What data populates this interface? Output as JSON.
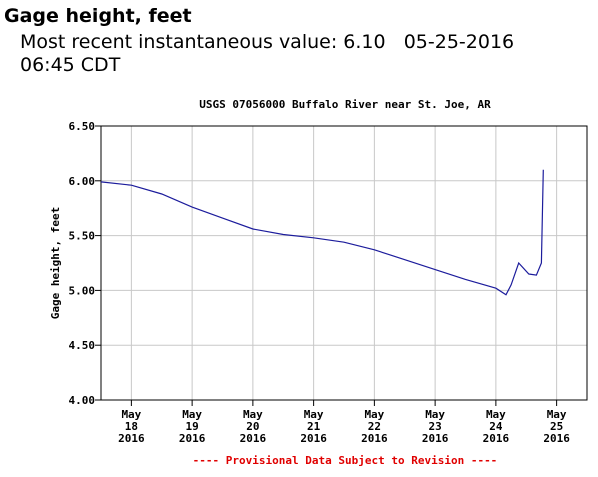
{
  "header": {
    "title": "Gage height, feet",
    "recent": "Most recent instantaneous value: 6.10   05-25-2016",
    "time": "06:45 CDT"
  },
  "chart_data": {
    "type": "line",
    "title": "USGS 07056000 Buffalo River near St. Joe, AR",
    "y_label": "Gage height, feet",
    "footnote": "---- Provisional Data Subject to Revision ----",
    "x": [
      "2016-05-18T00:00",
      "2016-05-18T12:00",
      "2016-05-19T00:00",
      "2016-05-19T12:00",
      "2016-05-20T00:00",
      "2016-05-20T12:00",
      "2016-05-21T00:00",
      "2016-05-21T12:00",
      "2016-05-22T00:00",
      "2016-05-22T12:00",
      "2016-05-23T00:00",
      "2016-05-23T12:00",
      "2016-05-24T00:00",
      "2016-05-24T12:00",
      "2016-05-24T16:00",
      "2016-05-24T18:00",
      "2016-05-24T21:00",
      "2016-05-25T01:00",
      "2016-05-25T04:00",
      "2016-05-25T06:00",
      "2016-05-25T06:45"
    ],
    "series": [
      {
        "name": "Gage height",
        "color": "#1c1c9c",
        "values": [
          5.99,
          5.96,
          5.88,
          5.76,
          5.66,
          5.56,
          5.51,
          5.48,
          5.44,
          5.37,
          5.28,
          5.19,
          5.1,
          5.02,
          4.96,
          5.05,
          5.25,
          5.15,
          5.14,
          5.25,
          6.1
        ]
      }
    ],
    "xlim": [
      "2016-05-18T00:00",
      "2016-05-26T00:00"
    ],
    "xticks": [
      {
        "value": "2016-05-18T12:00",
        "label": [
          "May",
          "18",
          "2016"
        ]
      },
      {
        "value": "2016-05-19T12:00",
        "label": [
          "May",
          "19",
          "2016"
        ]
      },
      {
        "value": "2016-05-20T12:00",
        "label": [
          "May",
          "20",
          "2016"
        ]
      },
      {
        "value": "2016-05-21T12:00",
        "label": [
          "May",
          "21",
          "2016"
        ]
      },
      {
        "value": "2016-05-22T12:00",
        "label": [
          "May",
          "22",
          "2016"
        ]
      },
      {
        "value": "2016-05-23T12:00",
        "label": [
          "May",
          "23",
          "2016"
        ]
      },
      {
        "value": "2016-05-24T12:00",
        "label": [
          "May",
          "24",
          "2016"
        ]
      },
      {
        "value": "2016-05-25T12:00",
        "label": [
          "May",
          "25",
          "2016"
        ]
      }
    ],
    "ylim": [
      4.0,
      6.5
    ],
    "yticks": [
      {
        "value": 4.0,
        "label": "4.00"
      },
      {
        "value": 4.5,
        "label": "4.50"
      },
      {
        "value": 5.0,
        "label": "5.00"
      },
      {
        "value": 5.5,
        "label": "5.50"
      },
      {
        "value": 6.0,
        "label": "6.00"
      },
      {
        "value": 6.5,
        "label": "6.50"
      }
    ],
    "grid": true
  }
}
